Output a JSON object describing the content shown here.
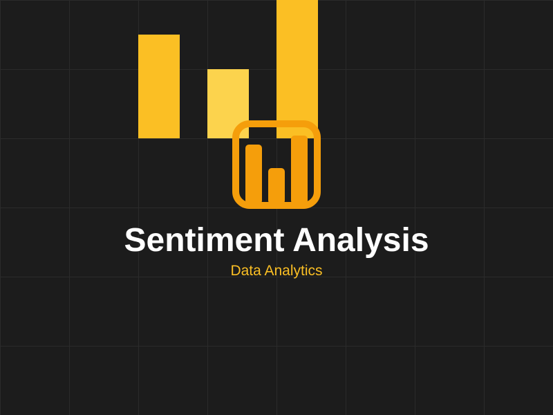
{
  "colors": {
    "background": "#1c1c1c",
    "grid": "#2b2b2b",
    "bar_primary": "#fbbf24",
    "bar_light": "#fcd34d",
    "icon_orange": "#f59e0b",
    "title": "#ffffff",
    "subtitle": "#fbbf24"
  },
  "logo": {
    "icon": "bar-chart-icon"
  },
  "title": "Sentiment Analysis",
  "subtitle": "Data Analytics"
}
